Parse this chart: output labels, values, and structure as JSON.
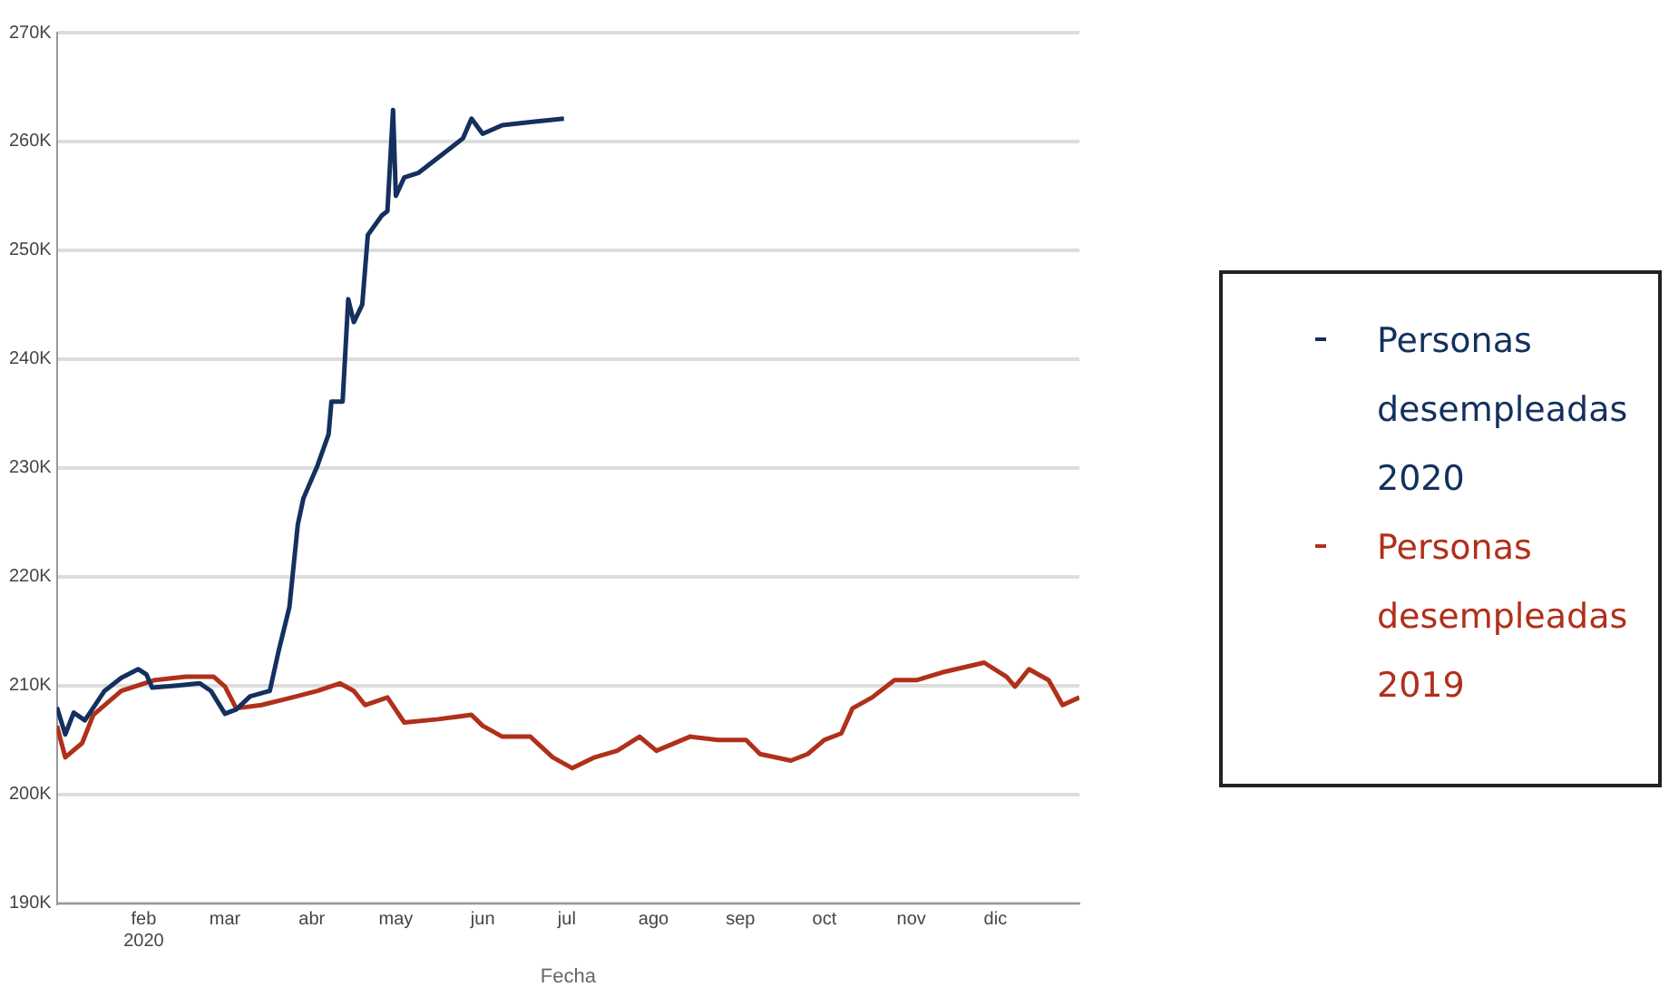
{
  "chart_data": {
    "type": "line",
    "xlabel": "Fecha",
    "legend": "right",
    "grid": "y",
    "marker": "none",
    "line_style": "solid",
    "xlim": [
      "2020-01-01",
      "2020-12-31"
    ],
    "xticks": [
      {
        "value": "2020-02-01",
        "label": "feb\n2020"
      },
      {
        "value": "2020-03-01",
        "label": "mar"
      },
      {
        "value": "2020-04-01",
        "label": "abr"
      },
      {
        "value": "2020-05-01",
        "label": "may"
      },
      {
        "value": "2020-06-01",
        "label": "jun"
      },
      {
        "value": "2020-07-01",
        "label": "jul"
      },
      {
        "value": "2020-08-01",
        "label": "ago"
      },
      {
        "value": "2020-09-01",
        "label": "sep"
      },
      {
        "value": "2020-10-01",
        "label": "oct"
      },
      {
        "value": "2020-11-01",
        "label": "nov"
      },
      {
        "value": "2020-12-01",
        "label": "dic"
      }
    ],
    "ylim": [
      190000,
      270000
    ],
    "yticks": [
      {
        "value": 190000,
        "label": "190K"
      },
      {
        "value": 200000,
        "label": "200K"
      },
      {
        "value": 210000,
        "label": "210K"
      },
      {
        "value": 220000,
        "label": "220K"
      },
      {
        "value": 230000,
        "label": "230K"
      },
      {
        "value": 240000,
        "label": "240K"
      },
      {
        "value": 250000,
        "label": "250K"
      },
      {
        "value": 260000,
        "label": "260K"
      },
      {
        "value": 270000,
        "label": "270K"
      }
    ],
    "series": [
      {
        "name": "Personas desempleadas 2020",
        "color": "#13305e",
        "x": [
          "2020-01-01",
          "2020-01-04",
          "2020-01-07",
          "2020-01-11",
          "2020-01-18",
          "2020-01-24",
          "2020-01-30",
          "2020-02-02",
          "2020-02-04",
          "2020-02-13",
          "2020-02-21",
          "2020-02-25",
          "2020-03-01",
          "2020-03-05",
          "2020-03-10",
          "2020-03-17",
          "2020-03-20",
          "2020-03-24",
          "2020-03-27",
          "2020-03-29",
          "2020-04-03",
          "2020-04-07",
          "2020-04-08",
          "2020-04-12",
          "2020-04-14",
          "2020-04-16",
          "2020-04-19",
          "2020-04-21",
          "2020-04-26",
          "2020-04-28",
          "2020-04-30",
          "2020-05-01",
          "2020-05-04",
          "2020-05-09",
          "2020-05-16",
          "2020-05-25",
          "2020-05-28",
          "2020-06-01",
          "2020-06-08",
          "2020-06-19",
          "2020-06-30"
        ],
        "values": [
          208000,
          205500,
          207500,
          206800,
          209500,
          210700,
          211500,
          211000,
          209800,
          210000,
          210200,
          209500,
          207400,
          207800,
          209000,
          209500,
          213000,
          217200,
          224800,
          227200,
          230200,
          233100,
          236100,
          236100,
          245500,
          243400,
          245000,
          251400,
          253200,
          253600,
          262900,
          255000,
          256700,
          257100,
          258500,
          260300,
          262100,
          260700,
          261500,
          261800,
          262100
        ]
      },
      {
        "name": "Personas desempleadas 2019",
        "color": "#b0301a",
        "x": [
          "2020-01-01",
          "2020-01-04",
          "2020-01-10",
          "2020-01-14",
          "2020-01-24",
          "2020-02-05",
          "2020-02-16",
          "2020-02-26",
          "2020-03-01",
          "2020-03-05",
          "2020-03-14",
          "2020-03-25",
          "2020-04-03",
          "2020-04-11",
          "2020-04-16",
          "2020-04-20",
          "2020-04-28",
          "2020-05-04",
          "2020-05-16",
          "2020-05-28",
          "2020-06-01",
          "2020-06-08",
          "2020-06-18",
          "2020-06-26",
          "2020-07-03",
          "2020-07-11",
          "2020-07-19",
          "2020-07-27",
          "2020-08-02",
          "2020-08-14",
          "2020-08-24",
          "2020-09-03",
          "2020-09-08",
          "2020-09-19",
          "2020-09-25",
          "2020-10-01",
          "2020-10-07",
          "2020-10-11",
          "2020-10-18",
          "2020-10-26",
          "2020-11-03",
          "2020-11-12",
          "2020-11-27",
          "2020-12-05",
          "2020-12-08",
          "2020-12-13",
          "2020-12-20",
          "2020-12-25",
          "2020-12-31"
        ],
        "values": [
          206300,
          203400,
          204700,
          207300,
          209500,
          210500,
          210800,
          210800,
          209900,
          207900,
          208200,
          208900,
          209500,
          210200,
          209500,
          208200,
          208900,
          206600,
          206900,
          207300,
          206300,
          205300,
          205300,
          203400,
          202400,
          203400,
          204000,
          205300,
          204000,
          205300,
          205000,
          205000,
          203700,
          203100,
          203700,
          205000,
          205600,
          207900,
          208900,
          210500,
          210500,
          211200,
          212100,
          210800,
          209900,
          211500,
          210500,
          208200,
          208900
        ]
      }
    ]
  }
}
